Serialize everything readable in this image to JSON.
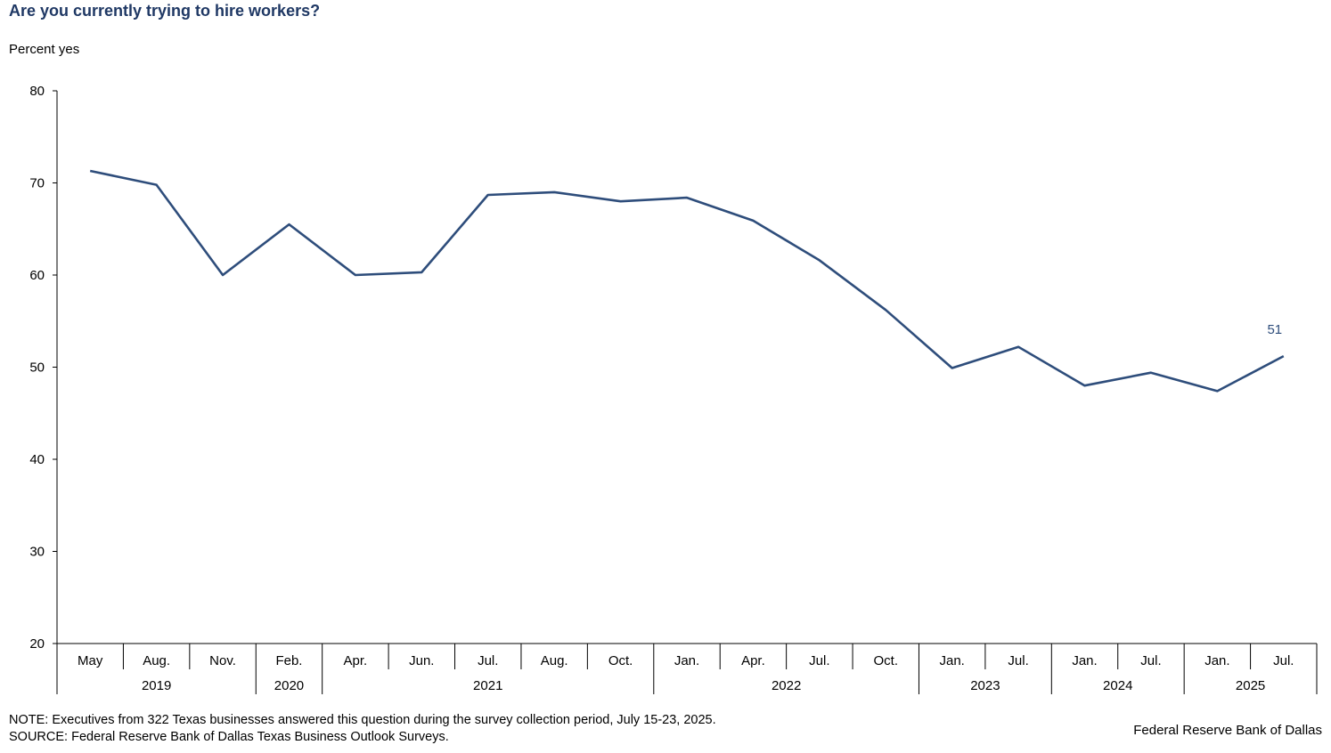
{
  "title": "Are you currently trying to hire workers?",
  "ylabel": "Percent yes",
  "note": "NOTE: Executives from 322 Texas businesses answered this question during the survey collection period, July 15-23, 2025.",
  "source": "SOURCE: Federal Reserve Bank of Dallas Texas Business Outlook Surveys.",
  "brand": "Federal Reserve Bank of Dallas",
  "colors": {
    "line": "#2e4d7b",
    "title": "#1f3864",
    "axis": "#000000"
  },
  "chart_data": {
    "type": "line",
    "categories": [
      "May",
      "Aug.",
      "Nov.",
      "Feb.",
      "Apr.",
      "Jun.",
      "Jul.",
      "Aug.",
      "Oct.",
      "Jan.",
      "Apr.",
      "Jul.",
      "Oct.",
      "Jan.",
      "Jul.",
      "Jan.",
      "Jul.",
      "Jan.",
      "Jul."
    ],
    "years": [
      {
        "label": "2019",
        "count": 3
      },
      {
        "label": "2020",
        "count": 1
      },
      {
        "label": "2021",
        "count": 5
      },
      {
        "label": "2022",
        "count": 4
      },
      {
        "label": "2023",
        "count": 2
      },
      {
        "label": "2024",
        "count": 2
      },
      {
        "label": "2025",
        "count": 2
      }
    ],
    "series": [
      {
        "values": [
          71.3,
          69.8,
          60.0,
          65.5,
          60.0,
          60.3,
          68.7,
          69.0,
          68.0,
          68.4,
          65.9,
          61.6,
          56.2,
          49.9,
          52.2,
          48.0,
          49.4,
          47.4,
          51.2
        ]
      }
    ],
    "end_label": "51",
    "ylim": [
      20,
      80
    ],
    "yticks": [
      20,
      30,
      40,
      50,
      60,
      70,
      80
    ]
  }
}
